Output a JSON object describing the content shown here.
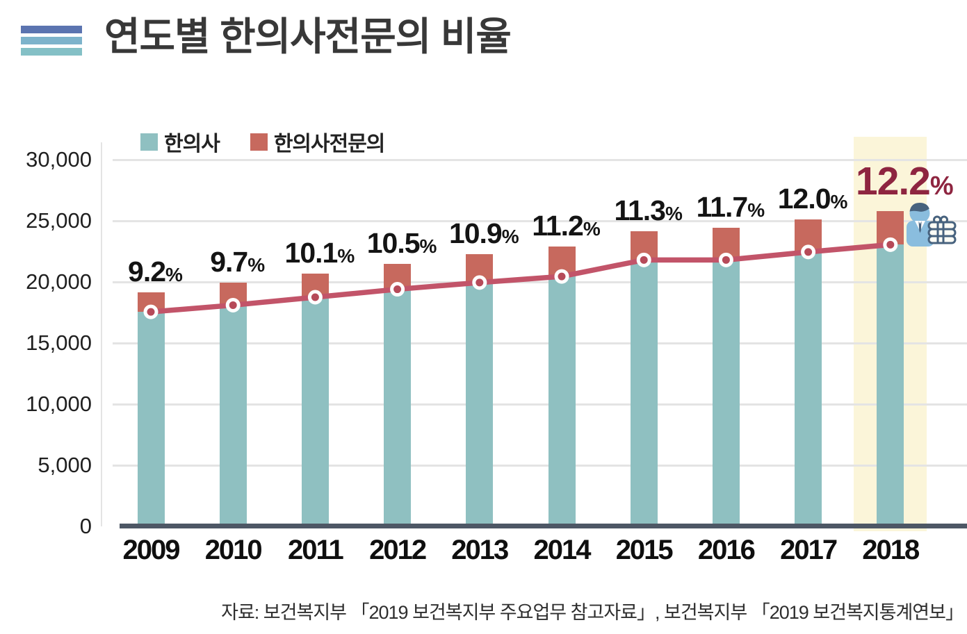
{
  "header": {
    "title": "연도별 한의사전문의 비율"
  },
  "icons": {
    "title_bars_icon": "three-horizontal-bars-icon",
    "title_bars_colors": [
      "#5b74b0",
      "#7db3cb",
      "#84c0c6"
    ],
    "person_money_icon": "businessman-with-money-stack-icon",
    "person_money_colors": {
      "body": "#8abdde",
      "outline": "#47627e"
    }
  },
  "legend": {
    "items": [
      {
        "label": "한의사",
        "color": "#8fc0c1"
      },
      {
        "label": "한의사전문의",
        "color": "#c7695e"
      }
    ]
  },
  "source": {
    "text": "자료: 보건복지부 「2019 보건복지부 주요업무 참고자료」, 보건복지부 「2019 보건복지통계연보」"
  },
  "chart_data": {
    "type": "bar",
    "subtype": "stacked-bar-with-line-overlay",
    "title": "연도별 한의사전문의 비율",
    "categories": [
      "2009",
      "2010",
      "2011",
      "2012",
      "2013",
      "2014",
      "2015",
      "2016",
      "2017",
      "2018"
    ],
    "series": [
      {
        "name": "한의사",
        "color": "#8fc0c1",
        "values": [
          17550,
          18100,
          18750,
          19400,
          19950,
          20450,
          21800,
          21800,
          22450,
          23050
        ]
      },
      {
        "name": "한의사전문의",
        "color": "#c7695e",
        "stacked_on": "한의사",
        "values": [
          1600,
          1850,
          1950,
          2100,
          2350,
          2450,
          2350,
          2650,
          2650,
          2750
        ]
      }
    ],
    "line_overlay": {
      "follows_series": "한의사",
      "color": "#c25469",
      "marker_fill": "#b64a59",
      "marker_ring": "#ffffff"
    },
    "percent_labels": {
      "values": [
        "9.2",
        "9.7",
        "10.1",
        "10.5",
        "10.9",
        "11.2",
        "11.3",
        "11.7",
        "12.0",
        "12.2"
      ],
      "unit": "%",
      "highlight_index": 9,
      "highlight_color": "#8e2540"
    },
    "highlight": {
      "category": "2018",
      "band_color": "#fbf5d9"
    },
    "y_axis": {
      "tick_labels": [
        "0",
        "5,000",
        "10,000",
        "15,000",
        "20,000",
        "25,000",
        "30,000"
      ],
      "tick_values": [
        0,
        5000,
        10000,
        15000,
        20000,
        25000,
        30000
      ],
      "ylim": [
        0,
        30000
      ],
      "grid": true
    },
    "legend_position": "top-left",
    "axis_color": "#4d5765",
    "grid_color": "#e4e4e4"
  }
}
